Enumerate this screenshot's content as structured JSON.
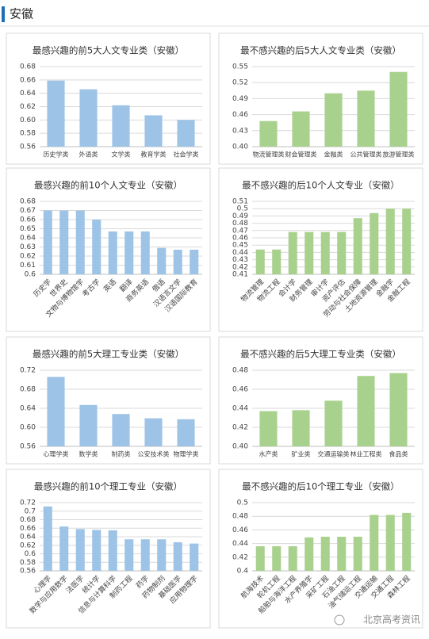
{
  "header": "安徽",
  "watermark": "北京高考资讯",
  "chart_data": [
    {
      "type": "bar",
      "title": "最感兴趣的前5大人文专业类（安徽）",
      "color": "#9dc3e6",
      "grid": true,
      "categories": [
        "历史学类",
        "外语类",
        "文学类",
        "教育学类",
        "社会学类"
      ],
      "values": [
        0.659,
        0.646,
        0.622,
        0.607,
        0.6
      ],
      "ylim": [
        0.56,
        0.68
      ],
      "yticks": [
        0.56,
        0.58,
        {
          "value": 0.6,
          "label": "0.60"
        },
        0.62,
        0.64,
        0.66,
        0.68
      ]
    },
    {
      "type": "bar",
      "title": "最不感兴趣的后5大人文专业类（安徽）",
      "color": "#a9d18e",
      "grid": true,
      "categories": [
        "物流管理类",
        "财会管理类",
        "金融类",
        "公共管理类",
        "旅游管理类"
      ],
      "values": [
        0.448,
        0.466,
        0.5,
        0.505,
        0.54
      ],
      "ylim": [
        0.4,
        0.55
      ],
      "yticks": [
        {
          "value": 0.4,
          "label": "0.40"
        },
        0.43,
        0.46,
        0.49,
        0.52,
        0.55
      ]
    },
    {
      "type": "bar",
      "title": "最感兴趣的前10个人文专业（安徽）",
      "color": "#9dc3e6",
      "grid": true,
      "categories": [
        "历史学",
        "世界史",
        "文物与博物馆学",
        "考古学",
        "英语",
        "翻译",
        "商务英语",
        "俄语",
        "汉语言文学",
        "汉语国际教育"
      ],
      "values": [
        0.67,
        0.67,
        0.67,
        0.66,
        0.647,
        0.647,
        0.647,
        0.629,
        0.627,
        0.627
      ],
      "ylim": [
        0.6,
        0.68
      ],
      "yticks": [
        0.6,
        0.61,
        0.62,
        0.63,
        0.64,
        0.65,
        0.66,
        0.67,
        0.68
      ]
    },
    {
      "type": "bar",
      "title": "最不感兴趣的后10个人文专业（安徽）",
      "color": "#a9d18e",
      "grid": true,
      "categories": [
        "物流管理",
        "物流工程",
        "会计学",
        "财务管理",
        "审计学",
        "资产评估",
        "劳动与社会保障",
        "土地资源管理",
        "金融学",
        "金融工程"
      ],
      "values": [
        0.444,
        0.444,
        0.468,
        0.468,
        0.468,
        0.468,
        0.487,
        0.494,
        0.5,
        0.5
      ],
      "ylim": [
        0.41,
        0.51
      ],
      "yticks": [
        0.41,
        0.42,
        0.43,
        0.44,
        0.45,
        0.46,
        0.47,
        0.48,
        0.49,
        0.5,
        0.51
      ]
    },
    {
      "type": "bar",
      "title": "最感兴趣的前5大理工专业类（安徽）",
      "color": "#9dc3e6",
      "grid": true,
      "categories": [
        "心理学类",
        "数学类",
        "制药类",
        "公安技术类",
        "物理学类"
      ],
      "values": [
        0.706,
        0.647,
        0.628,
        0.619,
        0.617
      ],
      "ylim": [
        0.56,
        0.72
      ],
      "yticks": [
        0.56,
        {
          "value": 0.6,
          "label": "0.60"
        },
        0.64,
        0.68,
        0.72
      ]
    },
    {
      "type": "bar",
      "title": "最不感兴趣的后5大理工专业类（安徽）",
      "color": "#a9d18e",
      "grid": true,
      "categories": [
        "水产类",
        "矿业类",
        "交通运输类",
        "林业工程类",
        "食品类"
      ],
      "values": [
        0.437,
        0.438,
        0.448,
        0.474,
        0.477
      ],
      "ylim": [
        0.4,
        0.48
      ],
      "yticks": [
        {
          "value": 0.4,
          "label": "0.40"
        },
        0.42,
        0.44,
        0.46,
        0.48
      ]
    },
    {
      "type": "bar",
      "title": "最感兴趣的前10个理工专业（安徽）",
      "color": "#9dc3e6",
      "grid": true,
      "categories": [
        "心理学",
        "数学与应用数学",
        "法医学",
        "统计学",
        "信息与计算科学",
        "制药工程",
        "药学",
        "药物制剂",
        "基础医学",
        "应用物理学"
      ],
      "values": [
        0.711,
        0.664,
        0.658,
        0.656,
        0.655,
        0.634,
        0.634,
        0.634,
        0.627,
        0.624
      ],
      "ylim": [
        0.56,
        0.72
      ],
      "yticks": [
        0.56,
        0.58,
        0.6,
        0.62,
        0.64,
        0.66,
        0.68,
        0.7,
        0.72
      ]
    },
    {
      "type": "bar",
      "title": "最不感兴趣的后10个理工专业（安徽）",
      "color": "#a9d18e",
      "grid": true,
      "categories": [
        "航海技术",
        "轮机工程",
        "船舶与海洋工程",
        "水产养殖学",
        "采矿工程",
        "石油工程",
        "油气储运工程",
        "交通运输",
        "交通工程",
        "森林工程"
      ],
      "values": [
        0.436,
        0.436,
        0.436,
        0.449,
        0.45,
        0.45,
        0.45,
        0.482,
        0.482,
        0.485
      ],
      "ylim": [
        0.4,
        0.5
      ],
      "yticks": [
        0.4,
        0.42,
        0.44,
        0.46,
        0.48,
        0.5
      ]
    }
  ]
}
